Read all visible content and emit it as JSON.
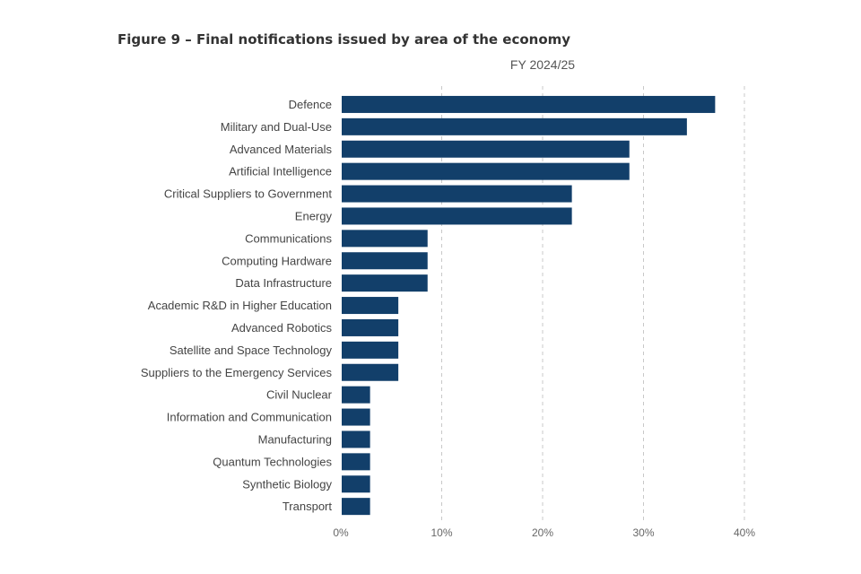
{
  "figure": {
    "title": "Figure 9 – Final notifications issued by area of the economy",
    "subtitle": "FY 2024/25"
  },
  "chart_data": {
    "type": "bar",
    "orientation": "horizontal",
    "title": "Figure 9 – Final notifications issued by area of the economy",
    "subtitle": "FY 2024/25",
    "categories": [
      "Defence",
      "Military and Dual-Use",
      "Advanced Materials",
      "Artificial Intelligence",
      "Critical Suppliers to Government",
      "Energy",
      "Communications",
      "Computing Hardware",
      "Data Infrastructure",
      "Academic R&D in Higher Education",
      "Advanced Robotics",
      "Satellite and Space Technology",
      "Suppliers to the Emergency Services",
      "Civil Nuclear",
      "Information and Communication",
      "Manufacturing",
      "Quantum Technologies",
      "Synthetic Biology",
      "Transport"
    ],
    "values": [
      37.1,
      34.3,
      28.6,
      28.6,
      22.9,
      22.9,
      8.6,
      8.6,
      8.6,
      5.7,
      5.7,
      5.7,
      5.7,
      2.9,
      2.9,
      2.9,
      2.9,
      2.9,
      2.9
    ],
    "xlim": [
      0,
      40
    ],
    "xticks": [
      0,
      10,
      20,
      30,
      40
    ],
    "xtick_labels": [
      "0%",
      "10%",
      "20%",
      "30%",
      "40%"
    ],
    "xlabel": "",
    "ylabel": "",
    "grid": "vertical-dashed",
    "legend": "none",
    "bar_color": "#123f6a"
  }
}
